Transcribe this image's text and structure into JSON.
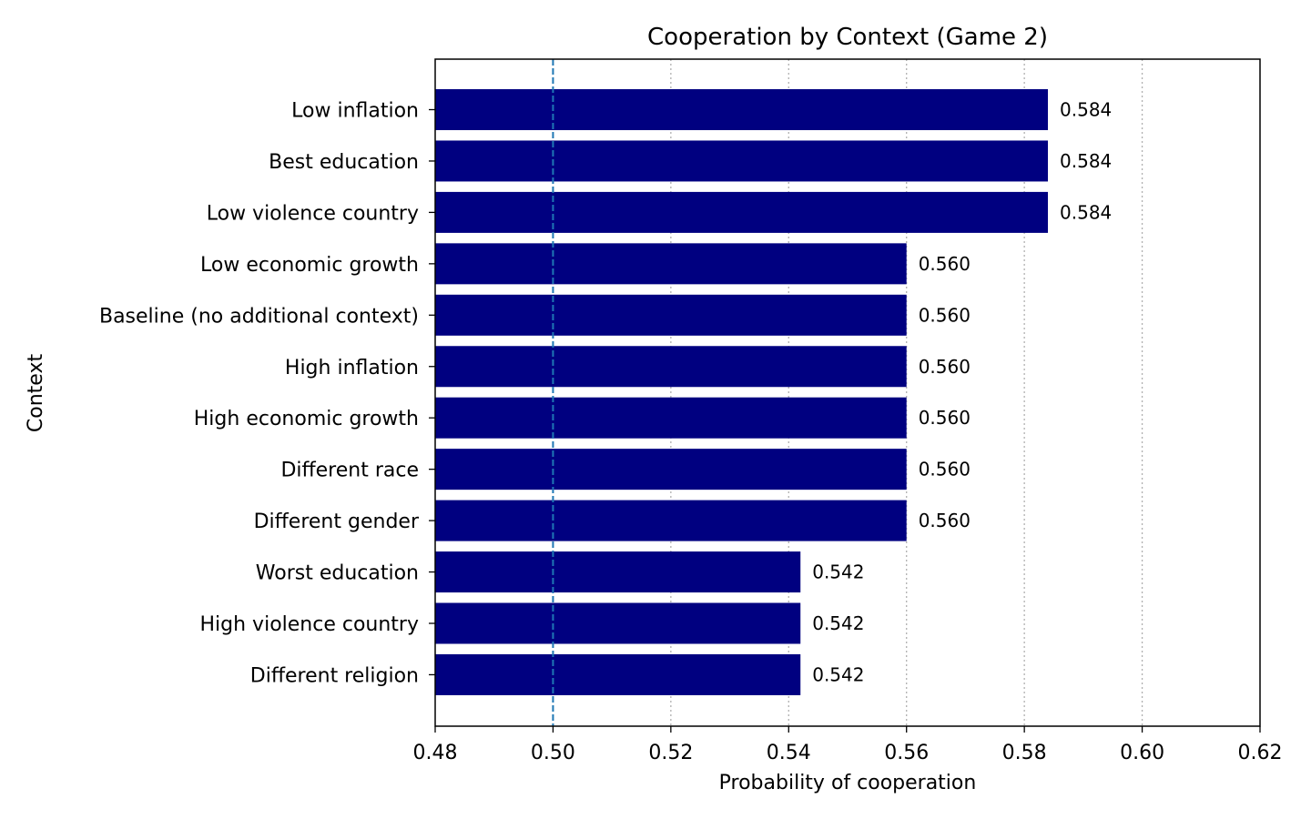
{
  "chart_data": {
    "type": "bar",
    "orientation": "horizontal",
    "title": "Cooperation by Context (Game 2)",
    "xlabel": "Probability of cooperation",
    "ylabel": "Context",
    "xlim": [
      0.48,
      0.62
    ],
    "xticks": [
      "0.48",
      "0.50",
      "0.52",
      "0.54",
      "0.56",
      "0.58",
      "0.60",
      "0.62"
    ],
    "xtick_values": [
      0.48,
      0.5,
      0.52,
      0.54,
      0.56,
      0.58,
      0.6,
      0.62
    ],
    "categories": [
      "Low inflation",
      "Best education",
      "Low violence country",
      "Low economic growth",
      "Baseline (no additional context)",
      "High inflation",
      "High economic growth",
      "Different race",
      "Different gender",
      "Worst education",
      "High violence country",
      "Different religion"
    ],
    "values": [
      0.584,
      0.584,
      0.584,
      0.56,
      0.56,
      0.56,
      0.56,
      0.56,
      0.56,
      0.542,
      0.542,
      0.542
    ],
    "value_labels": [
      "0.584",
      "0.584",
      "0.584",
      "0.560",
      "0.560",
      "0.560",
      "0.560",
      "0.560",
      "0.560",
      "0.542",
      "0.542",
      "0.542"
    ],
    "reference_line": {
      "x": 0.5,
      "style": "dashed",
      "color": "#1f77b4"
    },
    "grid": {
      "x": true,
      "style": "dotted",
      "color": "#b0b0b0"
    },
    "bar_color": "#000080",
    "legend": "none"
  }
}
